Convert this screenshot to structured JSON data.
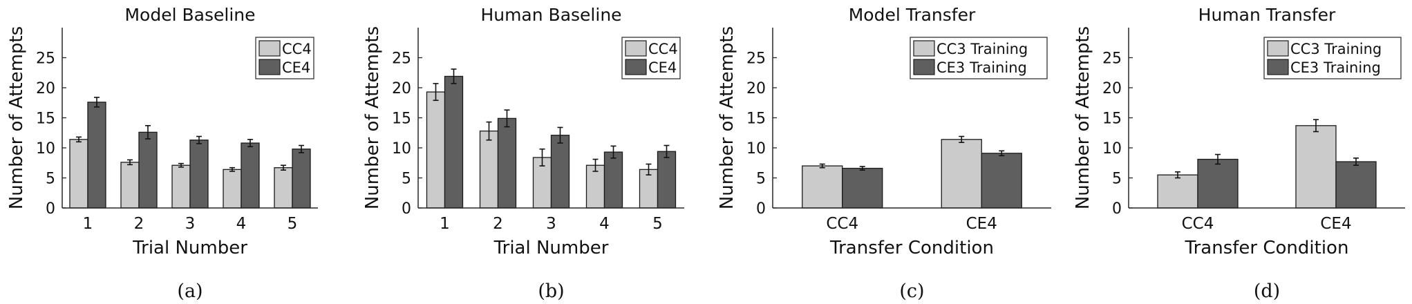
{
  "colors": {
    "light_bar": "#cbcbcb",
    "dark_bar": "#5f5f5f",
    "axis": "#262626"
  },
  "chart_data": [
    {
      "type": "bar",
      "title": "Model Baseline",
      "xlabel": "Trial Number",
      "ylabel": "Number of Attempts",
      "caption": "(a)",
      "categories": [
        "1",
        "2",
        "3",
        "4",
        "5"
      ],
      "ylim": [
        0,
        30
      ],
      "yticks": [
        0,
        5,
        10,
        15,
        20,
        25
      ],
      "legend_position": "top-right",
      "series": [
        {
          "name": "CC4",
          "values": [
            11.4,
            7.6,
            7.1,
            6.4,
            6.7
          ],
          "errors": [
            0.4,
            0.4,
            0.3,
            0.3,
            0.4
          ]
        },
        {
          "name": "CE4",
          "values": [
            17.6,
            12.6,
            11.3,
            10.8,
            9.8
          ],
          "errors": [
            0.8,
            1.1,
            0.6,
            0.6,
            0.6
          ]
        }
      ]
    },
    {
      "type": "bar",
      "title": "Human Baseline",
      "xlabel": "Trial Number",
      "ylabel": "Number of Attempts",
      "caption": "(b)",
      "categories": [
        "1",
        "2",
        "3",
        "4",
        "5"
      ],
      "ylim": [
        0,
        30
      ],
      "yticks": [
        0,
        5,
        10,
        15,
        20,
        25
      ],
      "legend_position": "top-right",
      "series": [
        {
          "name": "CC4",
          "values": [
            19.3,
            12.8,
            8.4,
            7.1,
            6.4
          ],
          "errors": [
            1.4,
            1.5,
            1.4,
            1.0,
            0.9
          ]
        },
        {
          "name": "CE4",
          "values": [
            21.9,
            14.9,
            12.1,
            9.3,
            9.4
          ],
          "errors": [
            1.2,
            1.4,
            1.3,
            1.0,
            1.0
          ]
        }
      ]
    },
    {
      "type": "bar",
      "title": "Model Transfer",
      "xlabel": "Transfer Condition",
      "ylabel": "Number of Attempts",
      "caption": "(c)",
      "categories": [
        "CC4",
        "CE4"
      ],
      "ylim": [
        0,
        30
      ],
      "yticks": [
        0,
        5,
        10,
        15,
        20,
        25
      ],
      "legend_position": "top-right",
      "series": [
        {
          "name": "CC3 Training",
          "values": [
            7.0,
            11.4
          ],
          "errors": [
            0.3,
            0.5
          ]
        },
        {
          "name": "CE3 Training",
          "values": [
            6.6,
            9.1
          ],
          "errors": [
            0.3,
            0.4
          ]
        }
      ]
    },
    {
      "type": "bar",
      "title": "Human Transfer",
      "xlabel": "Transfer Condition",
      "ylabel": "Number of Attempts",
      "caption": "(d)",
      "categories": [
        "CC4",
        "CE4"
      ],
      "ylim": [
        0,
        30
      ],
      "yticks": [
        0,
        5,
        10,
        15,
        20,
        25
      ],
      "legend_position": "top-right",
      "series": [
        {
          "name": "CC3 Training",
          "values": [
            5.5,
            13.7
          ],
          "errors": [
            0.5,
            1.0
          ]
        },
        {
          "name": "CE3 Training",
          "values": [
            8.1,
            7.7
          ],
          "errors": [
            0.8,
            0.6
          ]
        }
      ]
    }
  ]
}
